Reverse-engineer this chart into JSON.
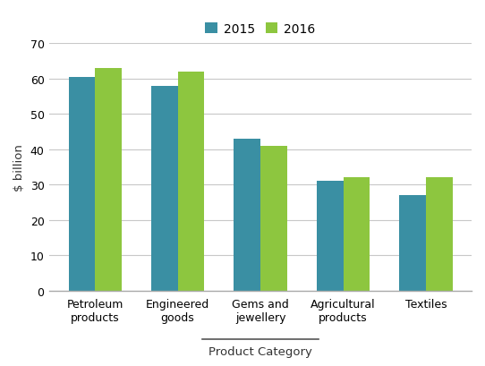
{
  "categories": [
    "Petroleum\nproducts",
    "Engineered\ngoods",
    "Gems and\njewellery",
    "Agricultural\nproducts",
    "Textiles"
  ],
  "values_2015": [
    60.5,
    58.0,
    43.0,
    31.0,
    27.0
  ],
  "values_2016": [
    63.0,
    62.0,
    41.0,
    32.0,
    32.0
  ],
  "color_2015": "#3a8fa3",
  "color_2016": "#8dc63f",
  "ylabel": "$ billion",
  "xlabel": "Product Category",
  "ylim": [
    0,
    70
  ],
  "yticks": [
    0,
    10,
    20,
    30,
    40,
    50,
    60,
    70
  ],
  "legend_labels": [
    "2015",
    "2016"
  ],
  "bar_width": 0.32,
  "label_fontsize": 9.5,
  "tick_fontsize": 9,
  "legend_fontsize": 10,
  "ylabel_color": "#333333",
  "xlabel_color": "#333333",
  "grid_color": "#c8c8c8",
  "spine_color": "#aaaaaa"
}
